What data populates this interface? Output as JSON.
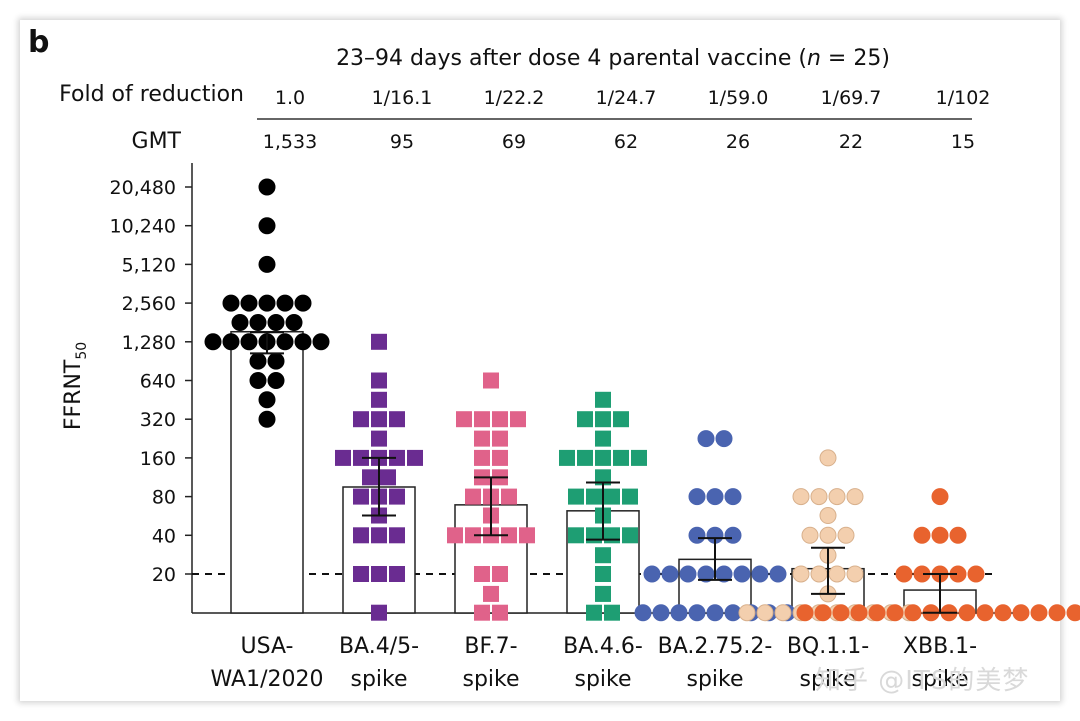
{
  "chart_data": {
    "type": "scatter",
    "panel_label": "b",
    "title": "23–94 days after dose 4 parental vaccine (",
    "title_n": "n",
    "title_suffix": " = 25)",
    "fold_label": "Fold of reduction",
    "gmt_label": "GMT",
    "ylabel_main": "FFRNT",
    "ylabel_sub": "50",
    "yscale": "log2",
    "ylim": [
      10,
      28000
    ],
    "yticks": [
      20,
      40,
      80,
      160,
      320,
      640,
      1280,
      2560,
      5120,
      10240,
      20480
    ],
    "ytick_labels": [
      "20",
      "40",
      "80",
      "160",
      "320",
      "640",
      "1,280",
      "2,560",
      "5,120",
      "10,240",
      "20,480"
    ],
    "detection_limit": 20,
    "groups": [
      {
        "label_line1": "USA-",
        "label_line2": "WA1/2020",
        "fold": "1.0",
        "gmt": "1,533",
        "gmt_value": 1533,
        "error": [
          1040,
          1520
        ],
        "color": "#000000",
        "marker": "circle",
        "filled": true,
        "points": [
          20480,
          10240,
          5120,
          2560,
          2560,
          2560,
          2560,
          2560,
          1810,
          1810,
          1810,
          1810,
          1280,
          1280,
          1280,
          1280,
          1280,
          1280,
          1280,
          905,
          905,
          640,
          640,
          453,
          320
        ]
      },
      {
        "label_line1": "BA.4/5-",
        "label_line2": "spike",
        "fold": "1/16.1",
        "gmt": "95",
        "gmt_value": 95,
        "error": [
          57,
          160
        ],
        "color": "#6a2c91",
        "marker": "square",
        "filled": true,
        "points": [
          1280,
          640,
          453,
          320,
          320,
          320,
          226,
          160,
          160,
          160,
          160,
          160,
          113,
          113,
          80,
          80,
          80,
          57,
          40,
          40,
          40,
          20,
          20,
          20,
          10
        ]
      },
      {
        "label_line1": "BF.7-",
        "label_line2": "spike",
        "fold": "1/22.2",
        "gmt": "69",
        "gmt_value": 69,
        "error": [
          40,
          113
        ],
        "color": "#e0628a",
        "marker": "square",
        "filled": true,
        "points": [
          640,
          320,
          320,
          320,
          320,
          226,
          226,
          160,
          160,
          113,
          113,
          80,
          80,
          80,
          57,
          40,
          40,
          40,
          40,
          40,
          20,
          20,
          14,
          10,
          10
        ]
      },
      {
        "label_line1": "BA.4.6-",
        "label_line2": "spike",
        "fold": "1/24.7",
        "gmt": "62",
        "gmt_value": 62,
        "error": [
          37,
          103
        ],
        "color": "#1e9e73",
        "marker": "square",
        "filled": true,
        "points": [
          453,
          320,
          320,
          320,
          226,
          160,
          160,
          160,
          160,
          160,
          113,
          80,
          80,
          80,
          80,
          57,
          40,
          40,
          40,
          40,
          28,
          20,
          14,
          10,
          10
        ]
      },
      {
        "label_line1": "BA.2.75.2-",
        "label_line2": "spike",
        "fold": "1/59.0",
        "gmt": "26",
        "gmt_value": 26,
        "error": [
          18,
          38
        ],
        "color": "#4a64b0",
        "marker": "circle",
        "filled": true,
        "points": [
          226,
          226,
          80,
          80,
          80,
          40,
          40,
          40,
          20,
          20,
          20,
          20,
          20,
          20,
          20,
          20,
          10,
          10,
          10,
          10,
          10,
          10,
          10,
          10,
          10
        ]
      },
      {
        "label_line1": "BQ.1.1-",
        "label_line2": "spike",
        "fold": "1/69.7",
        "gmt": "22",
        "gmt_value": 22,
        "error": [
          14,
          32
        ],
        "color": "#f3cfae",
        "marker": "circle",
        "filled": true,
        "points": [
          160,
          80,
          80,
          80,
          80,
          57,
          40,
          40,
          40,
          28,
          20,
          20,
          20,
          20,
          14,
          10,
          10,
          10,
          10,
          10,
          10,
          10,
          10,
          10,
          10
        ]
      },
      {
        "label_line1": "XBB.1-",
        "label_line2": "spike",
        "fold": "1/102",
        "gmt": "15",
        "gmt_value": 15,
        "error": [
          10,
          20
        ],
        "color": "#e8632e",
        "marker": "circle",
        "filled": true,
        "points": [
          80,
          40,
          40,
          40,
          20,
          20,
          20,
          20,
          20,
          10,
          10,
          10,
          10,
          10,
          10,
          10,
          10,
          10,
          10,
          10,
          10,
          10,
          10,
          10,
          10
        ]
      }
    ]
  },
  "watermark": "知乎 @ITS的美梦"
}
